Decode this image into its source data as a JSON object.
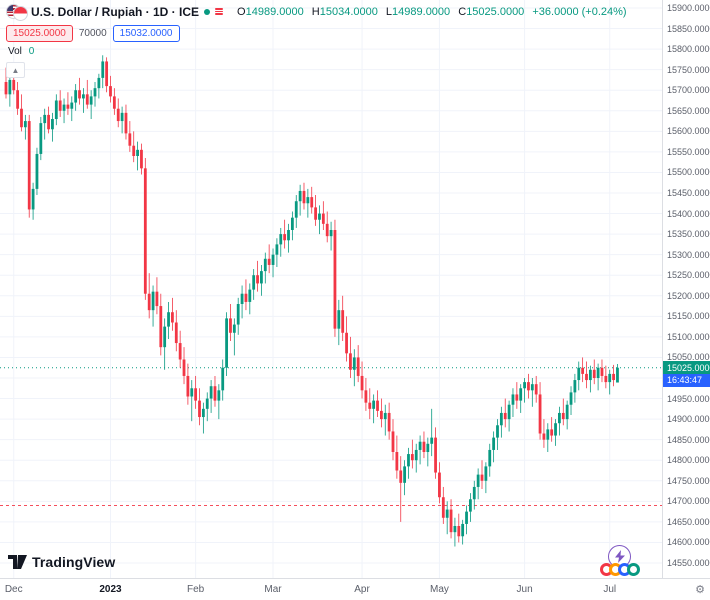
{
  "header": {
    "symbol_title": "U.S. Dollar / Rupiah · 1D · ICE",
    "ohlc": {
      "o_label": "O",
      "o_value": "14989.0000",
      "h_label": "H",
      "h_value": "15034.0000",
      "l_label": "L",
      "l_value": "14989.0000",
      "c_label": "C",
      "c_value": "15025.0000",
      "change": "+36.0000 (+0.24%)"
    },
    "order_badges": {
      "sell_price": "15025.0000",
      "quantity": "70000",
      "buy_price": "15032.0000"
    },
    "volume": {
      "label": "Vol",
      "value": "0"
    }
  },
  "price_scale": {
    "current_price_label": "15025.0000",
    "countdown": "16:43:47",
    "labels": [
      "15900.0000",
      "15850.0000",
      "15800.0000",
      "15750.0000",
      "15700.0000",
      "15650.0000",
      "15600.0000",
      "15550.0000",
      "15500.0000",
      "15450.0000",
      "15400.0000",
      "15350.0000",
      "15300.0000",
      "15250.0000",
      "15200.0000",
      "15150.0000",
      "15100.0000",
      "15050.0000",
      "15000.0000",
      "14950.0000",
      "14900.0000",
      "14850.0000",
      "14800.0000",
      "14750.0000",
      "14700.0000",
      "14650.0000",
      "14600.0000",
      "14550.0000"
    ]
  },
  "footer": {
    "logo_text": "TradingView"
  },
  "colors": {
    "up": "#089981",
    "down": "#f23645",
    "accent_blue": "#2962ff"
  },
  "chart_data": {
    "type": "candlestick",
    "title": "U.S. Dollar / Rupiah",
    "interval": "1D",
    "exchange": "ICE",
    "last_bar": {
      "open": 14989,
      "high": 15034,
      "low": 14989,
      "close": 15025,
      "change": 36,
      "change_pct": 0.24
    },
    "ylim": [
      14550,
      15900
    ],
    "grid_step": 50,
    "price_line": 15025,
    "alert_line": 14690,
    "up_color": "#089981",
    "down_color": "#f23645",
    "x_axis_labels": [
      {
        "label": "Dec",
        "index": 2
      },
      {
        "label": "2023",
        "index": 27
      },
      {
        "label": "Feb",
        "index": 49
      },
      {
        "label": "Mar",
        "index": 69
      },
      {
        "label": "Apr",
        "index": 92
      },
      {
        "label": "May",
        "index": 112
      },
      {
        "label": "Jun",
        "index": 134
      },
      {
        "label": "Jul",
        "index": 156
      }
    ],
    "candles": [
      [
        15720,
        15755,
        15680,
        15690
      ],
      [
        15690,
        15740,
        15660,
        15725
      ],
      [
        15725,
        15750,
        15690,
        15700
      ],
      [
        15700,
        15720,
        15640,
        15655
      ],
      [
        15655,
        15690,
        15600,
        15610
      ],
      [
        15610,
        15640,
        15580,
        15625
      ],
      [
        15625,
        15640,
        15390,
        15410
      ],
      [
        15410,
        15475,
        15385,
        15460
      ],
      [
        15460,
        15560,
        15445,
        15545
      ],
      [
        15545,
        15635,
        15530,
        15620
      ],
      [
        15620,
        15655,
        15580,
        15640
      ],
      [
        15640,
        15660,
        15595,
        15605
      ],
      [
        15605,
        15645,
        15575,
        15630
      ],
      [
        15630,
        15690,
        15615,
        15675
      ],
      [
        15675,
        15700,
        15635,
        15650
      ],
      [
        15650,
        15680,
        15620,
        15665
      ],
      [
        15665,
        15695,
        15640,
        15655
      ],
      [
        15655,
        15685,
        15625,
        15670
      ],
      [
        15670,
        15715,
        15650,
        15700
      ],
      [
        15700,
        15730,
        15665,
        15680
      ],
      [
        15680,
        15705,
        15645,
        15690
      ],
      [
        15690,
        15725,
        15655,
        15665
      ],
      [
        15665,
        15700,
        15630,
        15685
      ],
      [
        15685,
        15720,
        15660,
        15705
      ],
      [
        15705,
        15740,
        15680,
        15730
      ],
      [
        15730,
        15785,
        15705,
        15770
      ],
      [
        15770,
        15780,
        15695,
        15710
      ],
      [
        15710,
        15735,
        15670,
        15685
      ],
      [
        15685,
        15705,
        15640,
        15655
      ],
      [
        15655,
        15680,
        15610,
        15625
      ],
      [
        15625,
        15660,
        15595,
        15645
      ],
      [
        15645,
        15665,
        15580,
        15595
      ],
      [
        15595,
        15625,
        15550,
        15565
      ],
      [
        15565,
        15600,
        15525,
        15540
      ],
      [
        15540,
        15575,
        15505,
        15555
      ],
      [
        15555,
        15570,
        15495,
        15510
      ],
      [
        15510,
        15535,
        15190,
        15205
      ],
      [
        15205,
        15255,
        15145,
        15165
      ],
      [
        15165,
        15225,
        15125,
        15210
      ],
      [
        15210,
        15245,
        15155,
        15175
      ],
      [
        15175,
        15205,
        15055,
        15075
      ],
      [
        15075,
        15145,
        15020,
        15125
      ],
      [
        15125,
        15185,
        15095,
        15160
      ],
      [
        15160,
        15195,
        15115,
        15135
      ],
      [
        15135,
        15165,
        15065,
        15085
      ],
      [
        15085,
        15115,
        15025,
        15045
      ],
      [
        15045,
        15075,
        14985,
        15005
      ],
      [
        15005,
        15035,
        14935,
        14955
      ],
      [
        14955,
        14995,
        14895,
        14975
      ],
      [
        14975,
        15005,
        14925,
        14945
      ],
      [
        14945,
        14975,
        14885,
        14905
      ],
      [
        14905,
        14940,
        14865,
        14925
      ],
      [
        14925,
        14965,
        14895,
        14950
      ],
      [
        14950,
        14995,
        14915,
        14980
      ],
      [
        14980,
        15005,
        14930,
        14945
      ],
      [
        14945,
        14985,
        14900,
        14970
      ],
      [
        14970,
        15045,
        14945,
        15025
      ],
      [
        15025,
        15160,
        15005,
        15145
      ],
      [
        15145,
        15180,
        15090,
        15110
      ],
      [
        15110,
        15145,
        15055,
        15130
      ],
      [
        15130,
        15195,
        15105,
        15180
      ],
      [
        15180,
        15225,
        15145,
        15205
      ],
      [
        15205,
        15240,
        15165,
        15185
      ],
      [
        15185,
        15230,
        15155,
        15215
      ],
      [
        15215,
        15265,
        15190,
        15250
      ],
      [
        15250,
        15285,
        15210,
        15230
      ],
      [
        15230,
        15275,
        15200,
        15260
      ],
      [
        15260,
        15305,
        15230,
        15290
      ],
      [
        15290,
        15325,
        15255,
        15275
      ],
      [
        15275,
        15315,
        15245,
        15300
      ],
      [
        15300,
        15340,
        15270,
        15325
      ],
      [
        15325,
        15365,
        15295,
        15350
      ],
      [
        15350,
        15385,
        15315,
        15335
      ],
      [
        15335,
        15375,
        15305,
        15360
      ],
      [
        15360,
        15405,
        15335,
        15390
      ],
      [
        15390,
        15445,
        15365,
        15430
      ],
      [
        15430,
        15470,
        15395,
        15455
      ],
      [
        15455,
        15475,
        15410,
        15425
      ],
      [
        15425,
        15460,
        15390,
        15440
      ],
      [
        15440,
        15465,
        15400,
        15415
      ],
      [
        15415,
        15445,
        15370,
        15385
      ],
      [
        15385,
        15420,
        15350,
        15400
      ],
      [
        15400,
        15430,
        15360,
        15375
      ],
      [
        15375,
        15405,
        15330,
        15345
      ],
      [
        15345,
        15380,
        15310,
        15360
      ],
      [
        15360,
        15385,
        15100,
        15120
      ],
      [
        15120,
        15190,
        15080,
        15165
      ],
      [
        15165,
        15200,
        15090,
        15110
      ],
      [
        15110,
        15150,
        15040,
        15060
      ],
      [
        15060,
        15100,
        15000,
        15020
      ],
      [
        15020,
        15070,
        14980,
        15050
      ],
      [
        15050,
        15080,
        14990,
        15005
      ],
      [
        15005,
        15040,
        14950,
        14970
      ],
      [
        14970,
        15000,
        14920,
        14940
      ],
      [
        14940,
        14975,
        14900,
        14925
      ],
      [
        14925,
        14960,
        14890,
        14945
      ],
      [
        14945,
        14970,
        14905,
        14920
      ],
      [
        14920,
        14950,
        14880,
        14900
      ],
      [
        14900,
        14935,
        14860,
        14915
      ],
      [
        14915,
        14940,
        14850,
        14870
      ],
      [
        14870,
        14900,
        14800,
        14820
      ],
      [
        14820,
        14860,
        14755,
        14775
      ],
      [
        14775,
        14810,
        14650,
        14745
      ],
      [
        14745,
        14800,
        14715,
        14785
      ],
      [
        14785,
        14830,
        14755,
        14815
      ],
      [
        14815,
        14850,
        14780,
        14800
      ],
      [
        14800,
        14840,
        14770,
        14825
      ],
      [
        14825,
        14860,
        14790,
        14845
      ],
      [
        14845,
        14870,
        14805,
        14820
      ],
      [
        14820,
        14855,
        14785,
        14840
      ],
      [
        14840,
        14925,
        14810,
        14855
      ],
      [
        14855,
        14880,
        14755,
        14770
      ],
      [
        14770,
        14795,
        14695,
        14710
      ],
      [
        14710,
        14735,
        14645,
        14660
      ],
      [
        14660,
        14700,
        14620,
        14680
      ],
      [
        14680,
        14705,
        14610,
        14625
      ],
      [
        14625,
        14660,
        14590,
        14640
      ],
      [
        14640,
        14670,
        14600,
        14615
      ],
      [
        14615,
        14655,
        14595,
        14645
      ],
      [
        14645,
        14690,
        14620,
        14675
      ],
      [
        14675,
        14720,
        14650,
        14705
      ],
      [
        14705,
        14750,
        14680,
        14735
      ],
      [
        14735,
        14780,
        14705,
        14765
      ],
      [
        14765,
        14800,
        14730,
        14750
      ],
      [
        14750,
        14795,
        14720,
        14785
      ],
      [
        14785,
        14840,
        14760,
        14825
      ],
      [
        14825,
        14870,
        14795,
        14855
      ],
      [
        14855,
        14900,
        14825,
        14885
      ],
      [
        14885,
        14930,
        14855,
        14915
      ],
      [
        14915,
        14950,
        14880,
        14900
      ],
      [
        14900,
        14945,
        14870,
        14935
      ],
      [
        14935,
        14975,
        14905,
        14960
      ],
      [
        14960,
        14990,
        14925,
        14945
      ],
      [
        14945,
        14985,
        14915,
        14975
      ],
      [
        14975,
        15000,
        14940,
        14990
      ],
      [
        14990,
        15010,
        14950,
        14970
      ],
      [
        14970,
        15000,
        14930,
        14985
      ],
      [
        14985,
        15005,
        14940,
        14960
      ],
      [
        14960,
        14990,
        14850,
        14865
      ],
      [
        14865,
        14900,
        14830,
        14850
      ],
      [
        14850,
        14890,
        14820,
        14875
      ],
      [
        14875,
        14905,
        14845,
        14860
      ],
      [
        14860,
        14900,
        14835,
        14890
      ],
      [
        14890,
        14930,
        14860,
        14915
      ],
      [
        14915,
        14950,
        14885,
        14900
      ],
      [
        14900,
        14945,
        14875,
        14935
      ],
      [
        14935,
        14980,
        14910,
        14965
      ],
      [
        14965,
        15010,
        14940,
        14995
      ],
      [
        14995,
        15040,
        14970,
        15025
      ],
      [
        15025,
        15050,
        14990,
        15010
      ],
      [
        15010,
        15040,
        14975,
        14995
      ],
      [
        14995,
        15030,
        14965,
        15020
      ],
      [
        15020,
        15045,
        14985,
        15000
      ],
      [
        15000,
        15035,
        14970,
        15025
      ],
      [
        15025,
        15045,
        14990,
        15005
      ],
      [
        15005,
        15030,
        14975,
        14990
      ],
      [
        14990,
        15020,
        14960,
        15010
      ],
      [
        15010,
        15032,
        14980,
        14995
      ],
      [
        14989,
        15034,
        14989,
        15025
      ]
    ]
  }
}
